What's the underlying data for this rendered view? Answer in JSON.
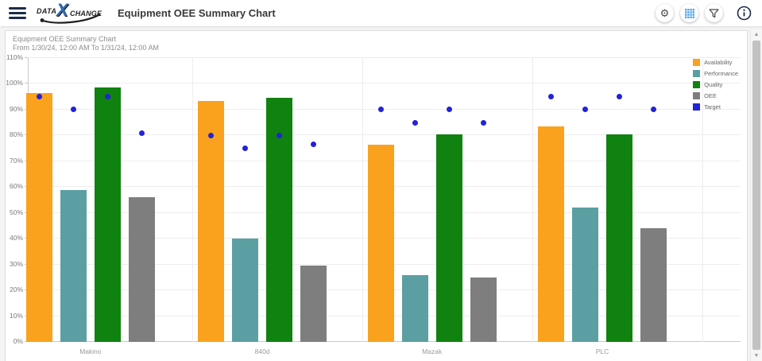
{
  "header": {
    "logo": {
      "part1": "DATA",
      "x": "X",
      "part2": "CHANGE"
    },
    "title": "Equipment OEE Summary Chart"
  },
  "card": {
    "title": "Equipment OEE Summary Chart",
    "subtitle": "From 1/30/24, 12:00 AM To 1/31/24, 12:00 AM"
  },
  "chart_data": {
    "type": "bar",
    "title": "Equipment OEE Summary Chart",
    "subtitle": "From 1/30/24, 12:00 AM To 1/31/24, 12:00 AM",
    "categories": [
      "Makino",
      "840d",
      "Mazak",
      "PLC"
    ],
    "series": [
      {
        "name": "Availability",
        "color": "#FAA21E",
        "values": [
          96.5,
          93.5,
          76.5,
          83.5
        ]
      },
      {
        "name": "Performance",
        "color": "#5C9FA3",
        "values": [
          59,
          40,
          26,
          52
        ]
      },
      {
        "name": "Quality",
        "color": "#108210",
        "values": [
          98.5,
          94.5,
          80.5,
          80.5
        ]
      },
      {
        "name": "OEE",
        "color": "#7E7E7E",
        "values": [
          56,
          29.5,
          25,
          44
        ]
      }
    ],
    "target_series": {
      "name": "Target",
      "type": "scatter",
      "color": "#2222D8",
      "values_by_category": [
        [
          95,
          90,
          95,
          81
        ],
        [
          80,
          75,
          80,
          76.5
        ],
        [
          90,
          85,
          90,
          85
        ],
        [
          95,
          90,
          95,
          90
        ]
      ]
    },
    "y_axis": {
      "min": 0,
      "max": 110,
      "step": 10,
      "suffix": "%"
    },
    "legend": {
      "position": "top-right",
      "entries": [
        "Availability",
        "Performance",
        "Quality",
        "OEE",
        "Target"
      ]
    },
    "grid": true
  }
}
